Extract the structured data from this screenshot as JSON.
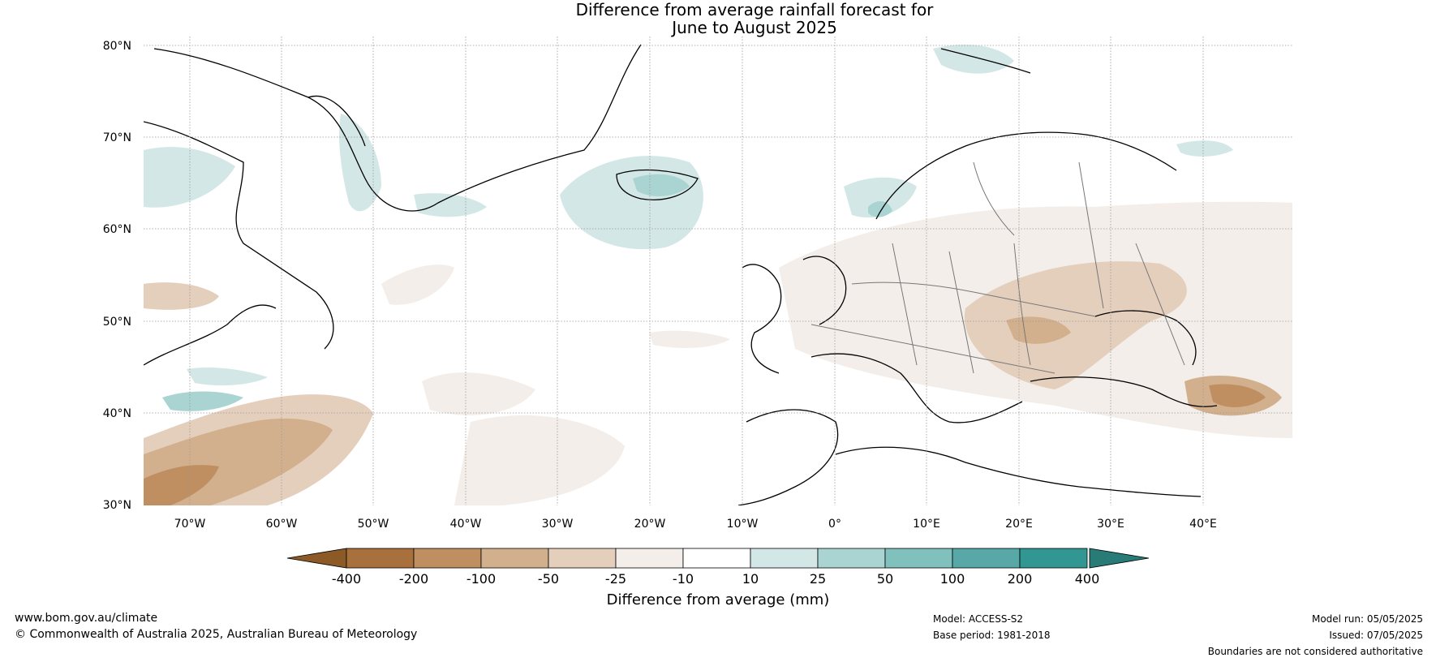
{
  "title_line1": "Difference from average rainfall forecast for",
  "title_line2": "June to August 2025",
  "lat_labels": [
    "80°N",
    "70°N",
    "60°N",
    "50°N",
    "40°N",
    "30°N"
  ],
  "lon_labels": [
    "70°W",
    "60°W",
    "50°W",
    "40°W",
    "30°W",
    "20°W",
    "10°W",
    "0°",
    "10°E",
    "20°E",
    "30°E",
    "40°E"
  ],
  "colorbar": {
    "label": "Difference from average (mm)",
    "ticks": [
      "-400",
      "-200",
      "-100",
      "-50",
      "-25",
      "-10",
      "10",
      "25",
      "50",
      "100",
      "200",
      "400"
    ],
    "colors": [
      "#8c5a26",
      "#a8703c",
      "#bf8f62",
      "#d2b08e",
      "#e4cfbd",
      "#f3eee9",
      "#ffffff",
      "#d3e7e6",
      "#a9d4d2",
      "#80c0bd",
      "#57a8a6",
      "#329793",
      "#287b77"
    ]
  },
  "footer": {
    "website": "www.bom.gov.au/climate",
    "copyright": "© Commonwealth of Australia 2025, Australian Bureau of Meteorology",
    "model": "Model: ACCESS-S2",
    "base_period": "Base period: 1981-2018",
    "model_run": "Model run: 05/05/2025",
    "issued": "Issued: 07/05/2025",
    "boundaries": "Boundaries are not considered authoritative"
  }
}
